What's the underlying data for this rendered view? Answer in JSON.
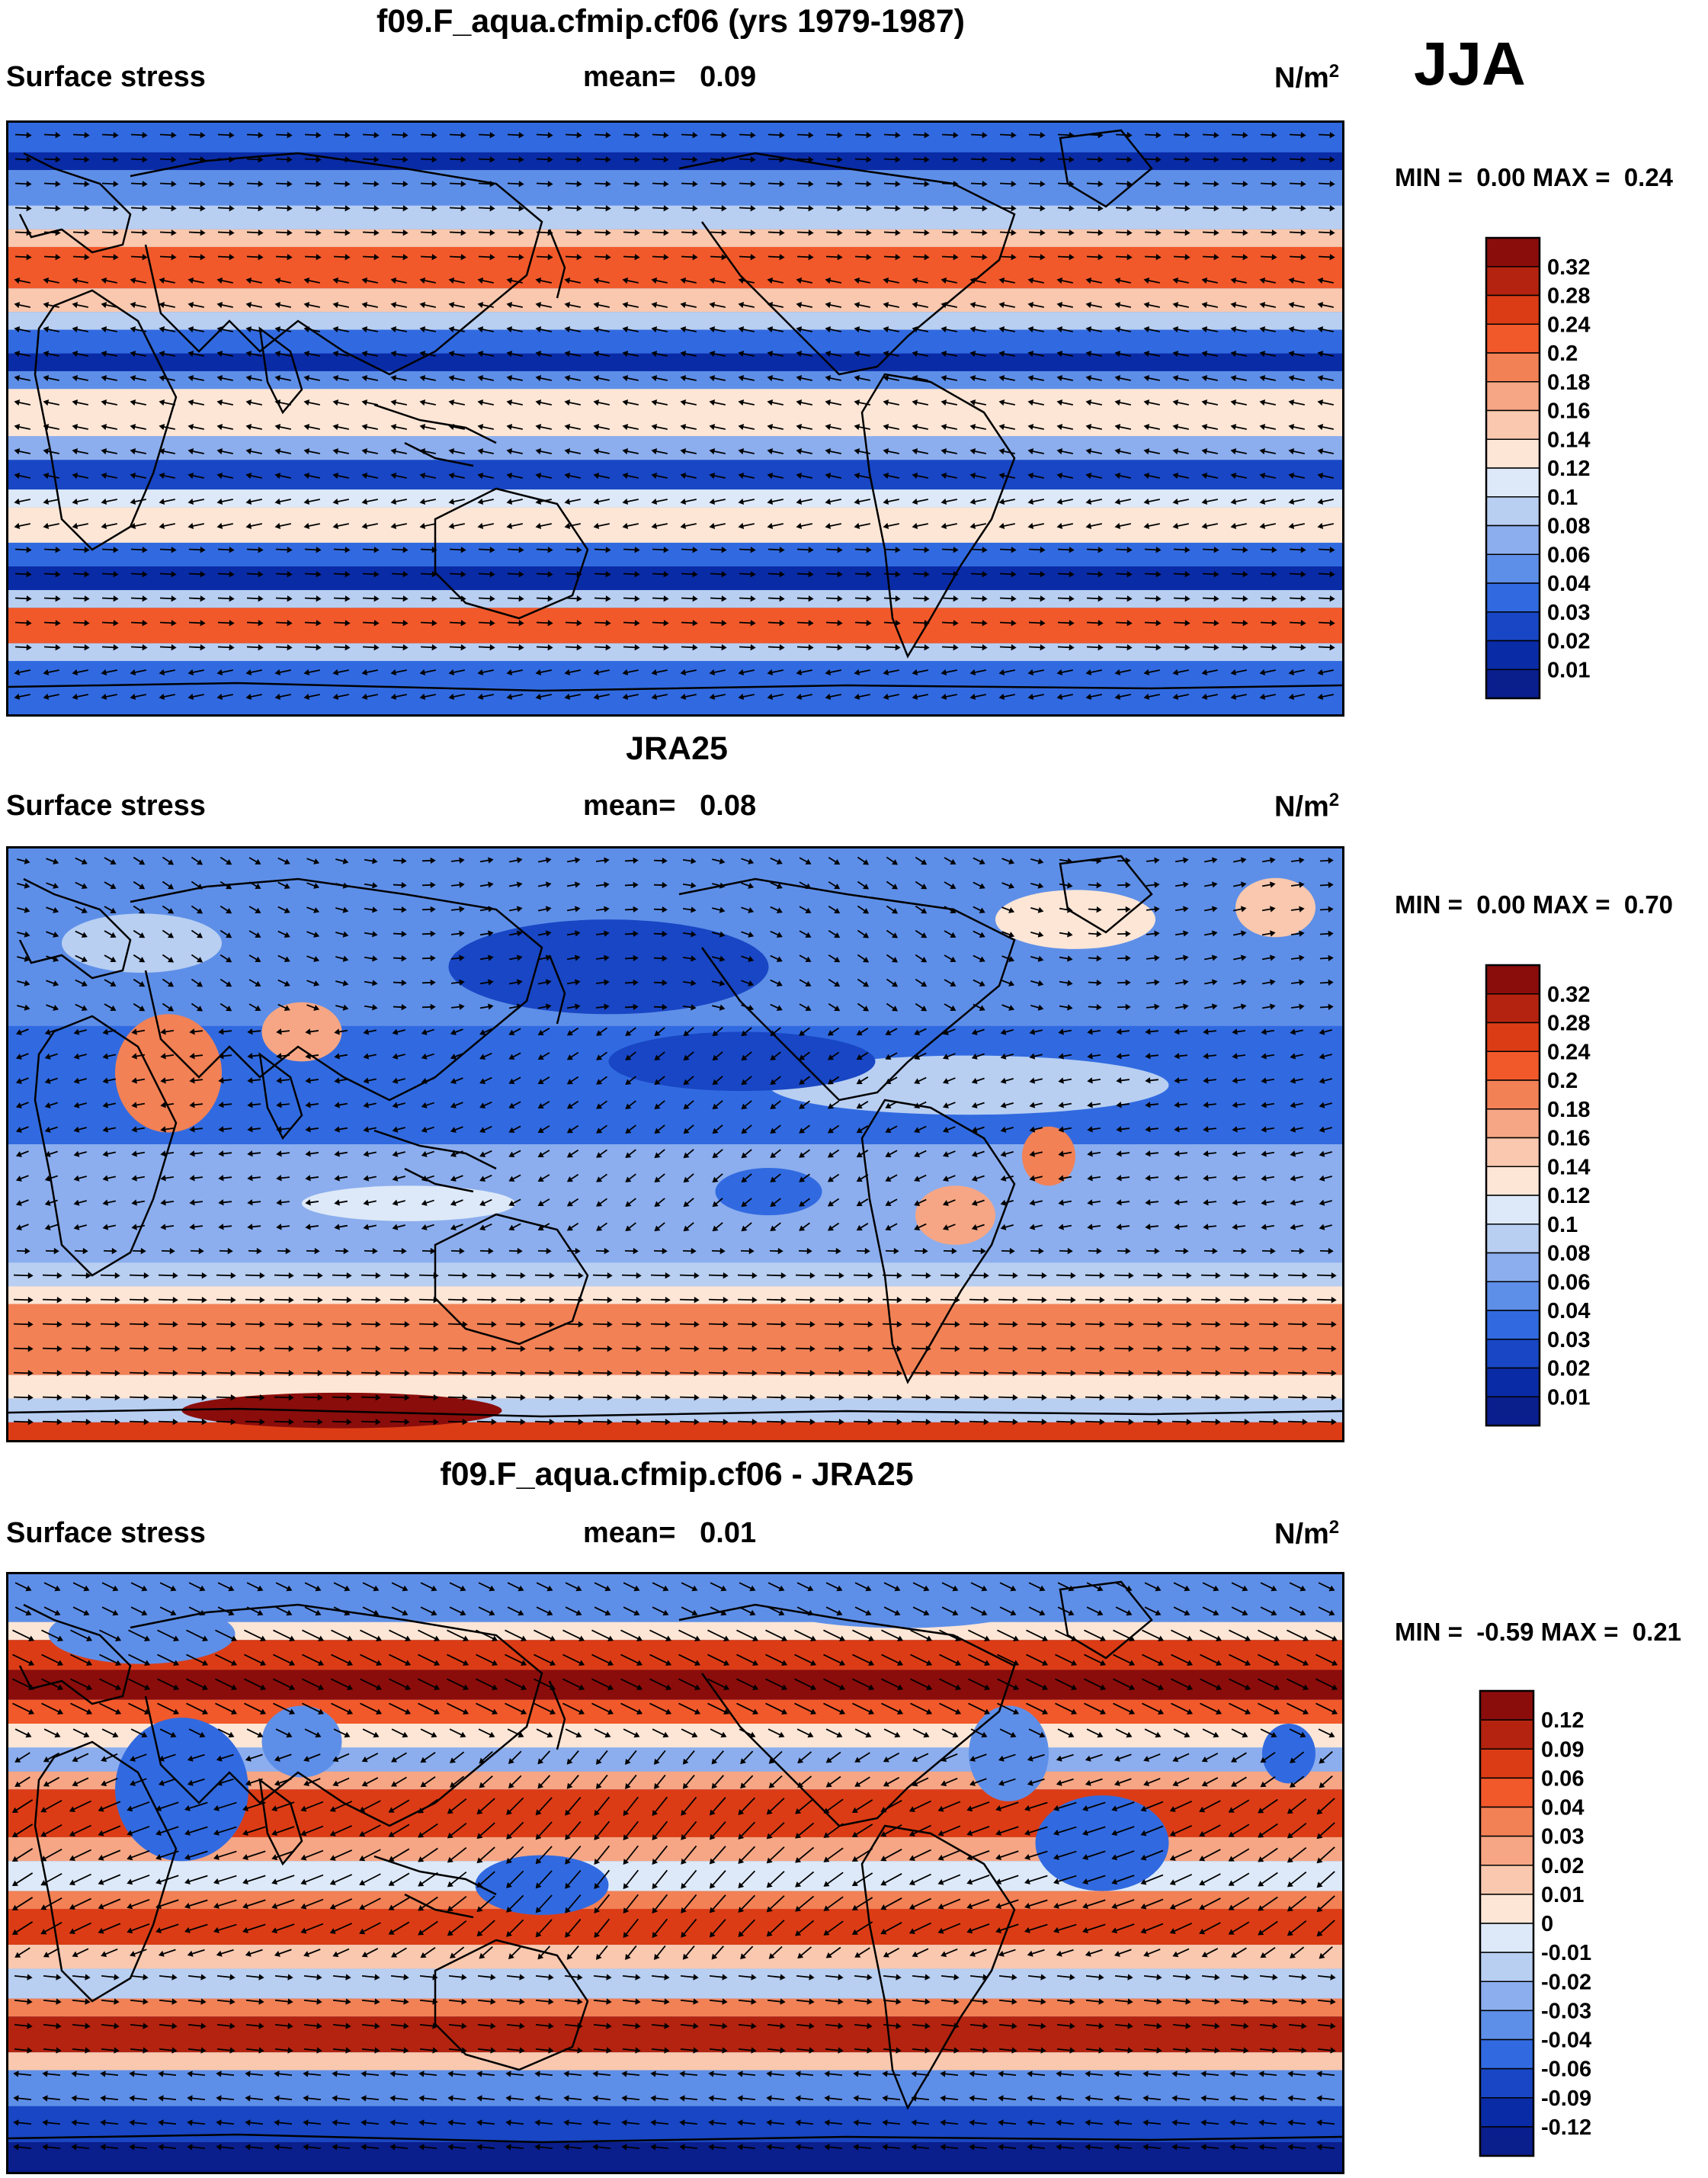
{
  "season": "JJA",
  "panels": [
    {
      "id": "model",
      "title": "f09.F_aqua.cfmip.cf06 (yrs 1979-1987)",
      "variable": "Surface stress",
      "mean_label": "mean=",
      "mean_value": "0.09",
      "units_base": "N/m",
      "units_exp": "2",
      "min_label": "MIN =",
      "min_value": "0.00",
      "max_label": "MAX =",
      "max_value": "0.24",
      "colorbar_labels": [
        "0.32",
        "0.28",
        "0.24",
        "0.2",
        "0.18",
        "0.16",
        "0.14",
        "0.12",
        "0.1",
        "0.08",
        "0.06",
        "0.04",
        "0.03",
        "0.02",
        "0.01"
      ]
    },
    {
      "id": "obs",
      "title": "JRA25",
      "variable": "Surface stress",
      "mean_label": "mean=",
      "mean_value": "0.08",
      "units_base": "N/m",
      "units_exp": "2",
      "min_label": "MIN =",
      "min_value": "0.00",
      "max_label": "MAX =",
      "max_value": "0.70",
      "colorbar_labels": [
        "0.32",
        "0.28",
        "0.24",
        "0.2",
        "0.18",
        "0.16",
        "0.14",
        "0.12",
        "0.1",
        "0.08",
        "0.06",
        "0.04",
        "0.03",
        "0.02",
        "0.01"
      ]
    },
    {
      "id": "diff",
      "title": "f09.F_aqua.cfmip.cf06 - JRA25",
      "variable": "Surface stress",
      "mean_label": "mean=",
      "mean_value": "0.01",
      "units_base": "N/m",
      "units_exp": "2",
      "min_label": "MIN =",
      "min_value": "-0.59",
      "max_label": "MAX =",
      "max_value": "0.21",
      "colorbar_labels": [
        "0.12",
        "0.09",
        "0.06",
        "0.04",
        "0.03",
        "0.02",
        "0.01",
        "0",
        "-0.01",
        "-0.02",
        "-0.03",
        "-0.04",
        "-0.06",
        "-0.09",
        "-0.12"
      ]
    }
  ],
  "colors": {
    "palette_top_to_bottom": [
      "#8a0d0b",
      "#b3230f",
      "#dc3c15",
      "#f2592a",
      "#f28155",
      "#f6a684",
      "#f9c8ae",
      "#fde6d6",
      "#dde9f8",
      "#b8cff2",
      "#8caeee",
      "#5e8fe8",
      "#316ae0",
      "#1846c4",
      "#0a2ba6",
      "#0a1e8c"
    ],
    "background": "#ffffff",
    "coastline": "#000000",
    "vector": "#000000"
  },
  "map_layers": [
    "coastline",
    "wind-stress-vectors",
    "filled-contours"
  ]
}
